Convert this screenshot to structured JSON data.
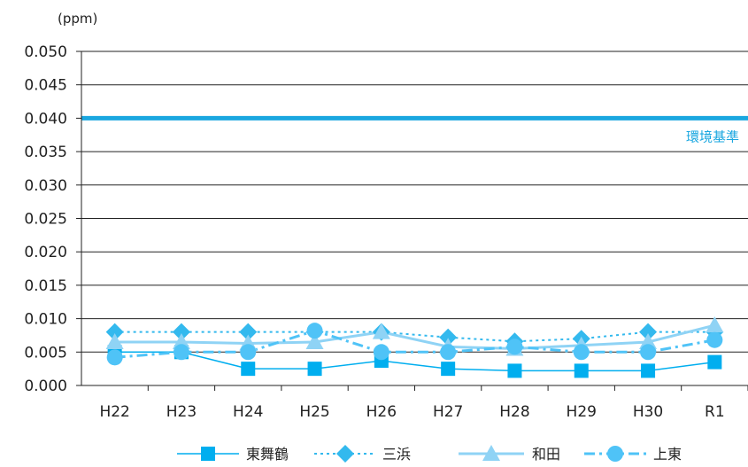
{
  "chart_data": {
    "type": "line",
    "unit_label": "(ppm)",
    "categories": [
      "H22",
      "H23",
      "H24",
      "H25",
      "H26",
      "H27",
      "H28",
      "H29",
      "H30",
      "R1"
    ],
    "ylim": [
      0,
      0.05
    ],
    "yticks": [
      "0.050",
      "0.045",
      "0.040",
      "0.035",
      "0.030",
      "0.025",
      "0.020",
      "0.015",
      "0.010",
      "0.005",
      "0.000"
    ],
    "grid": true,
    "legend_position": "bottom",
    "reference_line": {
      "label": "環境基準",
      "value": 0.04,
      "color": "#1aa7e0"
    },
    "series": [
      {
        "name": "東舞鶴",
        "color": "#00aeef",
        "marker": "square",
        "dash": "solid",
        "values": [
          0.005,
          0.005,
          0.0025,
          0.0025,
          0.0037,
          0.0025,
          0.0022,
          0.0022,
          0.0022,
          0.0035
        ]
      },
      {
        "name": "三浜",
        "color": "#33b9ee",
        "marker": "diamond",
        "dash": "dotted",
        "values": [
          0.008,
          0.008,
          0.008,
          0.008,
          0.008,
          0.0072,
          0.0066,
          0.007,
          0.008,
          0.008
        ]
      },
      {
        "name": "和田",
        "color": "#8fd3f5",
        "marker": "triangle",
        "dash": "solid",
        "values": [
          0.0065,
          0.0065,
          0.0063,
          0.0065,
          0.008,
          0.0058,
          0.0055,
          0.006,
          0.0065,
          0.009
        ]
      },
      {
        "name": "上東",
        "color": "#4fc3f7",
        "marker": "circle",
        "dash": "dashdot",
        "values": [
          0.0042,
          0.005,
          0.005,
          0.0082,
          0.005,
          0.005,
          0.0058,
          0.005,
          0.005,
          0.0068
        ]
      }
    ]
  }
}
